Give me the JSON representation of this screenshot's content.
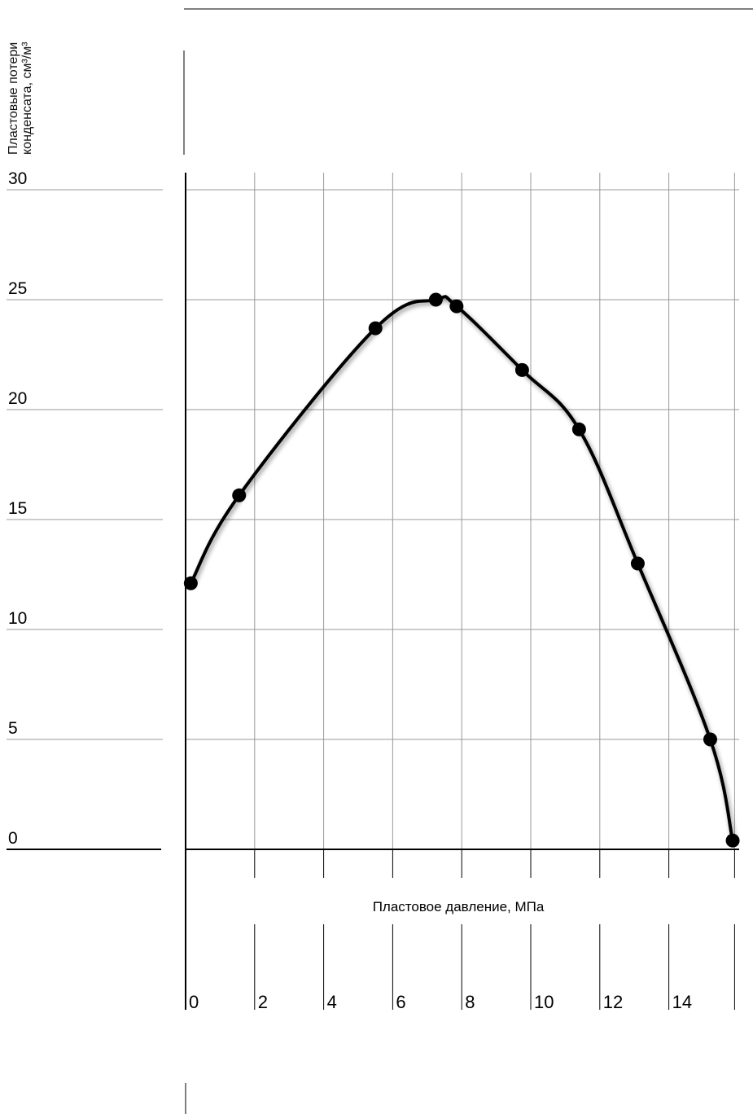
{
  "chart_data": {
    "type": "line",
    "ylabel": "Пластовые потери\nконденсата, см³/м³",
    "xlabel": "Пластовое давление, МПа",
    "xlim": [
      0,
      16
    ],
    "ylim": [
      0,
      30
    ],
    "x_ticks": [
      0,
      2,
      4,
      6,
      8,
      10,
      12,
      14
    ],
    "x_tick_labels": [
      "0",
      "2",
      "4",
      "6",
      "8",
      "10",
      "12",
      "14"
    ],
    "y_ticks": [
      0,
      5,
      10,
      15,
      20,
      25,
      30
    ],
    "y_tick_labels": [
      "0",
      "5",
      "10",
      "15",
      "20",
      "25",
      "30"
    ],
    "grid": true,
    "series": [
      {
        "color": "#000000",
        "marker": "circle",
        "points": [
          {
            "x": 0.15,
            "y": 12.1
          },
          {
            "x": 1.55,
            "y": 16.1
          },
          {
            "x": 5.5,
            "y": 23.7
          },
          {
            "x": 7.25,
            "y": 25.0
          },
          {
            "x": 7.85,
            "y": 24.7
          },
          {
            "x": 9.75,
            "y": 21.8
          },
          {
            "x": 11.4,
            "y": 19.1
          },
          {
            "x": 13.1,
            "y": 13.0
          },
          {
            "x": 15.2,
            "y": 5.0
          },
          {
            "x": 15.85,
            "y": 0.4
          }
        ]
      }
    ]
  }
}
